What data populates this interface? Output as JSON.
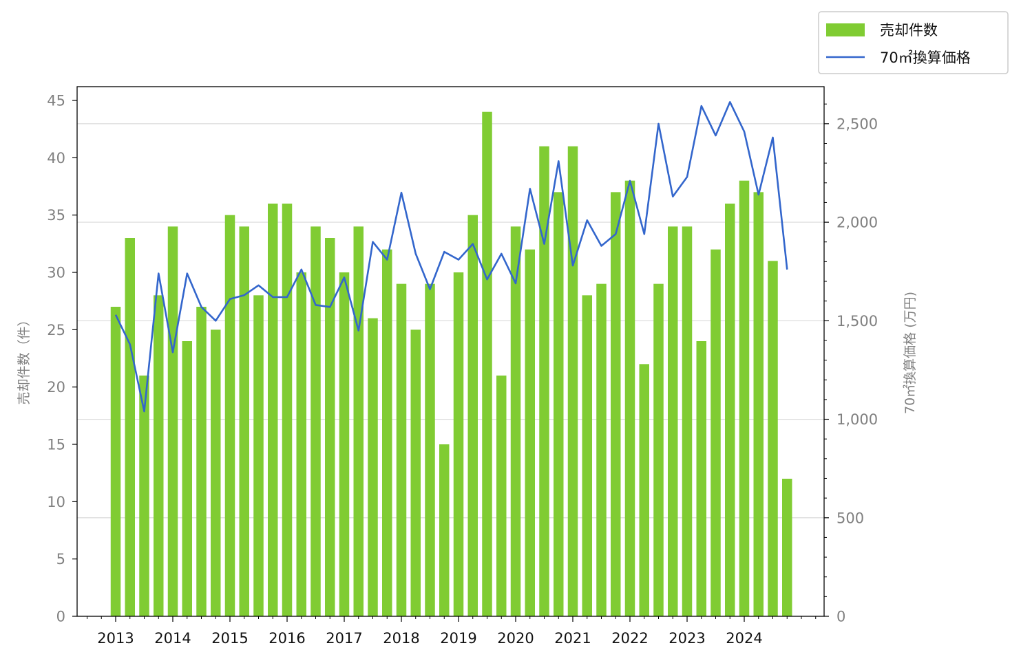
{
  "chart_data": {
    "type": "bar+line",
    "x": [
      "2013Q1",
      "2013Q2",
      "2013Q3",
      "2013Q4",
      "2014Q1",
      "2014Q2",
      "2014Q3",
      "2014Q4",
      "2015Q1",
      "2015Q2",
      "2015Q3",
      "2015Q4",
      "2016Q1",
      "2016Q2",
      "2016Q3",
      "2016Q4",
      "2017Q1",
      "2017Q2",
      "2017Q3",
      "2017Q4",
      "2018Q1",
      "2018Q2",
      "2018Q3",
      "2018Q4",
      "2019Q1",
      "2019Q2",
      "2019Q3",
      "2019Q4",
      "2020Q1",
      "2020Q2",
      "2020Q3",
      "2020Q4",
      "2021Q1",
      "2021Q2",
      "2021Q3",
      "2021Q4",
      "2022Q1",
      "2022Q2",
      "2022Q3",
      "2022Q4",
      "2023Q1",
      "2023Q2",
      "2023Q3",
      "2023Q4",
      "2024Q1",
      "2024Q2",
      "2024Q3",
      "2024Q4"
    ],
    "x_tick_labels": [
      "2013",
      "2014",
      "2015",
      "2016",
      "2017",
      "2018",
      "2019",
      "2020",
      "2021",
      "2022",
      "2023",
      "2024"
    ],
    "series": [
      {
        "name": "売却件数",
        "kind": "bar",
        "axis": "left",
        "color": "#80cc33",
        "values": [
          27,
          33,
          21,
          28,
          34,
          24,
          27,
          25,
          35,
          34,
          28,
          36,
          36,
          30,
          34,
          33,
          30,
          34,
          26,
          32,
          29,
          25,
          29,
          15,
          30,
          35,
          44,
          21,
          34,
          32,
          41,
          37,
          41,
          28,
          29,
          37,
          38,
          22,
          29,
          34,
          34,
          24,
          32,
          36,
          38,
          37,
          31,
          12
        ]
      },
      {
        "name": "70㎡換算価格",
        "kind": "line",
        "axis": "right",
        "color": "#3366cc",
        "values": [
          1530,
          1380,
          1040,
          1740,
          1340,
          1740,
          1570,
          1500,
          1610,
          1630,
          1680,
          1620,
          1620,
          1760,
          1580,
          1570,
          1720,
          1450,
          1900,
          1810,
          2150,
          1840,
          1660,
          1850,
          1810,
          1890,
          1710,
          1840,
          1690,
          2170,
          1890,
          2310,
          1780,
          2010,
          1880,
          1940,
          2210,
          1940,
          2500,
          2130,
          2230,
          2590,
          2440,
          2610,
          2460,
          2140,
          2430,
          1760
        ]
      }
    ],
    "ylabel_left": "売却件数（件）",
    "ylabel_right": "70㎡換算価格 (万円)",
    "ylim_left": [
      0,
      46.2
    ],
    "ylim_right": [
      0,
      2688
    ],
    "yticks_left": [
      "0",
      "5",
      "10",
      "15",
      "20",
      "25",
      "30",
      "35",
      "40",
      "45"
    ],
    "yticks_right": [
      "0",
      "500",
      "1,000",
      "1,500",
      "2,000",
      "2,500"
    ],
    "grid": "horizontal, right axis",
    "legend_position": "top-right outside"
  }
}
